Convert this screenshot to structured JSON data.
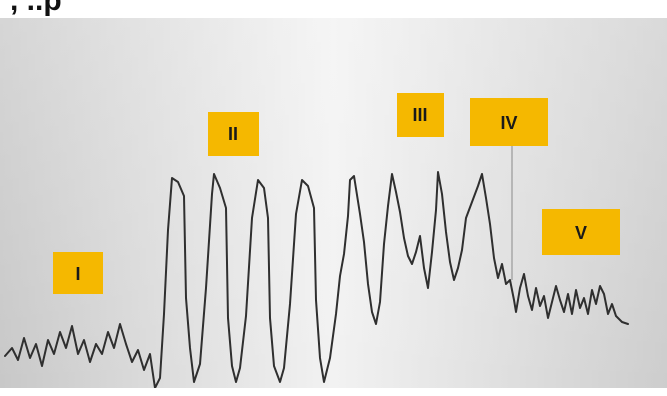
{
  "header": {
    "partial_title": ", ..p"
  },
  "phases": [
    {
      "id": "phase-I",
      "label": "I"
    },
    {
      "id": "phase-II",
      "label": "II"
    },
    {
      "id": "phase-III",
      "label": "III"
    },
    {
      "id": "phase-IV",
      "label": "IV"
    },
    {
      "id": "phase-V",
      "label": "V"
    }
  ],
  "colors": {
    "label_fill": "#f5b800",
    "trace": "#2f2f2f",
    "panel_dark": "#c9c9c9",
    "panel_light": "#f4f4f4"
  }
}
